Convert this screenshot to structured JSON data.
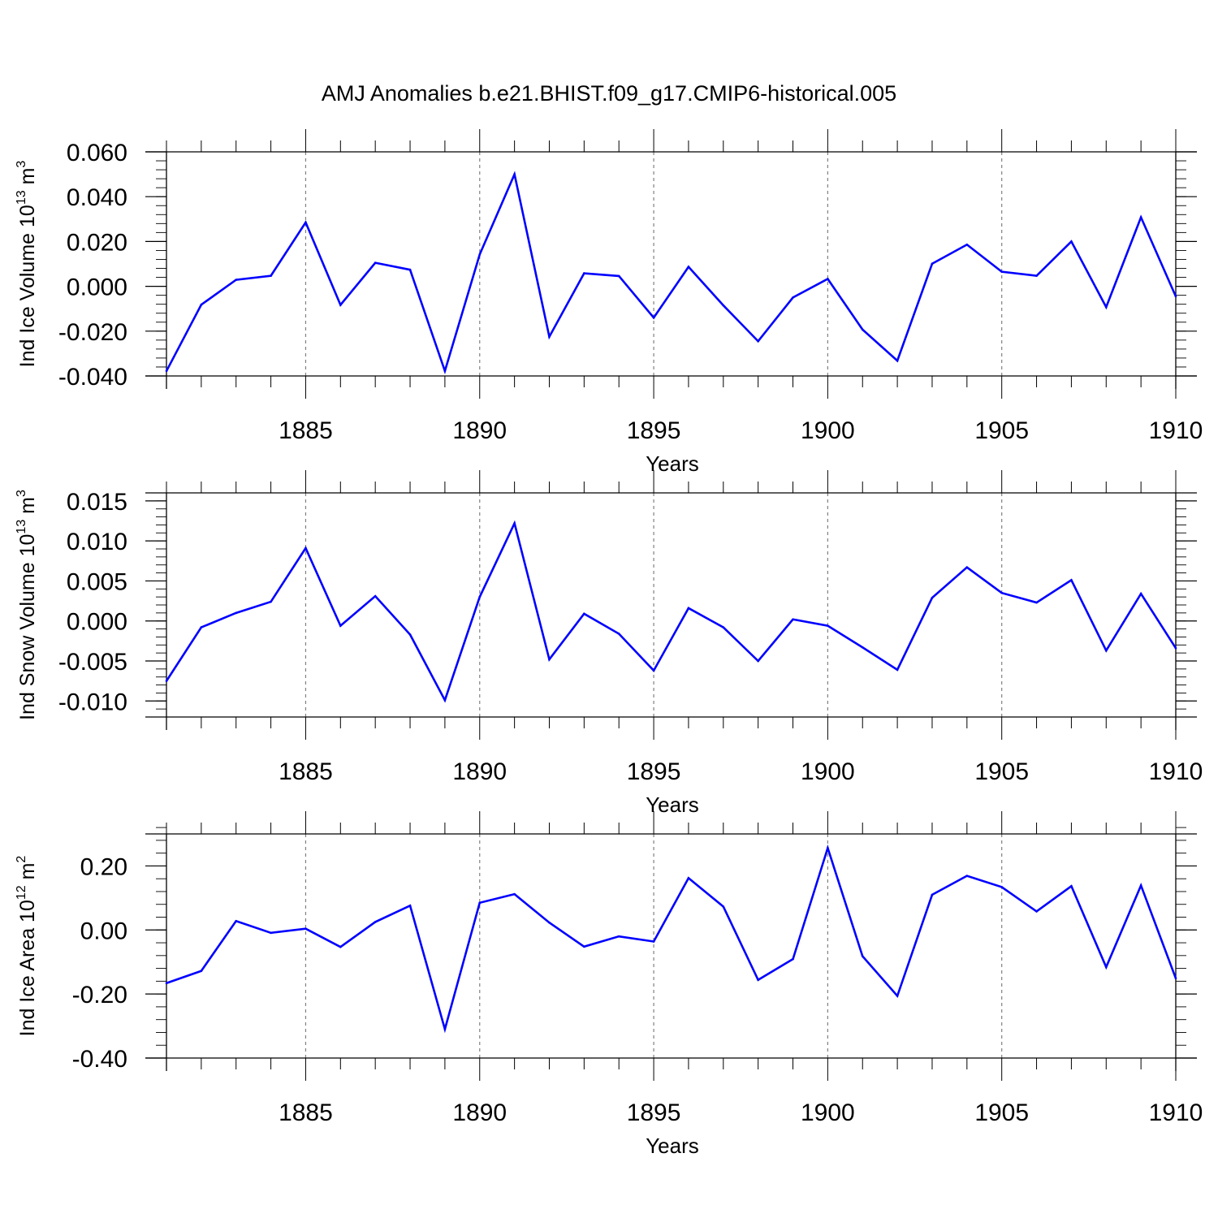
{
  "figure": {
    "title": "AMJ Anomalies b.e21.BHIST.f09_g17.CMIP6-historical.005",
    "line_color": "#0000ff",
    "grid_color": "#808080"
  },
  "chart_data": [
    {
      "type": "line",
      "id": "ice-volume",
      "ylabel_main": "Ind Ice Volume 10",
      "ylabel_exp": "13",
      "ylabel_unit": " m",
      "ylabel_unit_exp": "3",
      "xlabel": "Years",
      "xlim": [
        1881,
        1910
      ],
      "ylim": [
        -0.04,
        0.06
      ],
      "yticks": [
        -0.04,
        -0.02,
        0.0,
        0.02,
        0.04,
        0.06
      ],
      "ytick_labels": [
        "-0.040",
        "-0.020",
        "0.000",
        "0.020",
        "0.040",
        "0.060"
      ],
      "yminor": 0.004,
      "xticks": [
        1885,
        1890,
        1895,
        1900,
        1905,
        1910
      ],
      "xtick_labels": [
        "1885",
        "1890",
        "1895",
        "1900",
        "1905",
        "1910"
      ],
      "grid": true,
      "series": [
        {
          "name": "Ind Ice Volume",
          "x": [
            1881,
            1882,
            1883,
            1884,
            1885,
            1886,
            1887,
            1888,
            1889,
            1890,
            1891,
            1892,
            1893,
            1894,
            1895,
            1896,
            1897,
            1898,
            1899,
            1900,
            1901,
            1902,
            1903,
            1904,
            1905,
            1906,
            1907,
            1908,
            1909,
            1910
          ],
          "values": [
            -0.0378,
            -0.0082,
            0.0029,
            0.0047,
            0.0285,
            -0.0083,
            0.0105,
            0.0074,
            -0.0378,
            0.0142,
            0.05,
            -0.0225,
            0.0058,
            0.0046,
            -0.014,
            0.0087,
            -0.0085,
            -0.0245,
            -0.005,
            0.0033,
            -0.0193,
            -0.0332,
            0.0101,
            0.0186,
            0.0065,
            0.0047,
            0.02,
            -0.0093,
            0.0308,
            -0.0045
          ]
        }
      ]
    },
    {
      "type": "line",
      "id": "snow-volume",
      "ylabel_main": "Ind Snow Volume 10",
      "ylabel_exp": "13",
      "ylabel_unit": " m",
      "ylabel_unit_exp": "3",
      "xlabel": "Years",
      "xlim": [
        1881,
        1910
      ],
      "ylim": [
        -0.012,
        0.016
      ],
      "yticks": [
        -0.01,
        -0.005,
        0.0,
        0.005,
        0.01,
        0.015
      ],
      "ytick_labels": [
        "-0.010",
        "-0.005",
        "0.000",
        "0.005",
        "0.010",
        "0.015"
      ],
      "yminor": 0.001,
      "xticks": [
        1885,
        1890,
        1895,
        1900,
        1905,
        1910
      ],
      "xtick_labels": [
        "1885",
        "1890",
        "1895",
        "1900",
        "1905",
        "1910"
      ],
      "grid": true,
      "series": [
        {
          "name": "Ind Snow Volume",
          "x": [
            1881,
            1882,
            1883,
            1884,
            1885,
            1886,
            1887,
            1888,
            1889,
            1890,
            1891,
            1892,
            1893,
            1894,
            1895,
            1896,
            1897,
            1898,
            1899,
            1900,
            1901,
            1902,
            1903,
            1904,
            1905,
            1906,
            1907,
            1908,
            1909,
            1910
          ],
          "values": [
            -0.0075,
            -0.0008,
            0.001,
            0.0024,
            0.0091,
            -0.0006,
            0.0031,
            -0.0017,
            -0.0099,
            0.003,
            0.0122,
            -0.0048,
            0.0009,
            -0.0016,
            -0.0062,
            0.0016,
            -0.0008,
            -0.005,
            0.0002,
            -0.0006,
            -0.0033,
            -0.0061,
            0.0029,
            0.0067,
            0.0035,
            0.0023,
            0.0051,
            -0.0037,
            0.0034,
            -0.0034
          ]
        }
      ]
    },
    {
      "type": "line",
      "id": "ice-area",
      "ylabel_main": "Ind Ice Area 10",
      "ylabel_exp": "12",
      "ylabel_unit": " m",
      "ylabel_unit_exp": "2",
      "xlabel": "Years",
      "xlim": [
        1881,
        1910
      ],
      "ylim": [
        -0.4,
        0.3
      ],
      "yticks": [
        -0.4,
        -0.2,
        0.0,
        0.2
      ],
      "ytick_labels": [
        "-0.40",
        "-0.20",
        "0.00",
        "0.20"
      ],
      "yminor": 0.04,
      "xticks": [
        1885,
        1890,
        1895,
        1900,
        1905,
        1910
      ],
      "xtick_labels": [
        "1885",
        "1890",
        "1895",
        "1900",
        "1905",
        "1910"
      ],
      "grid": true,
      "series": [
        {
          "name": "Ind Ice Area",
          "x": [
            1881,
            1882,
            1883,
            1884,
            1885,
            1886,
            1887,
            1888,
            1889,
            1890,
            1891,
            1892,
            1893,
            1894,
            1895,
            1896,
            1897,
            1898,
            1899,
            1900,
            1901,
            1902,
            1903,
            1904,
            1905,
            1906,
            1907,
            1908,
            1909,
            1910
          ],
          "values": [
            -0.166,
            -0.128,
            0.028,
            -0.009,
            0.004,
            -0.053,
            0.025,
            0.076,
            -0.31,
            0.085,
            0.112,
            0.023,
            -0.052,
            -0.02,
            -0.036,
            0.162,
            0.073,
            -0.156,
            -0.091,
            0.256,
            -0.082,
            -0.206,
            0.11,
            0.169,
            0.134,
            0.058,
            0.137,
            -0.116,
            0.139,
            -0.151
          ]
        }
      ]
    }
  ]
}
